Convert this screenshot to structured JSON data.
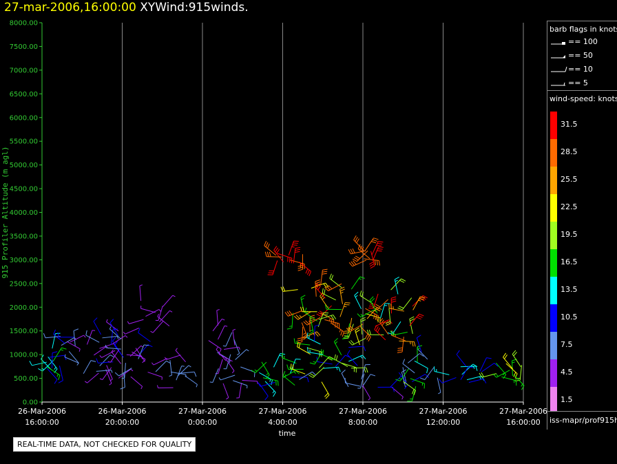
{
  "title": {
    "datetime": "27-mar-2006,16:00:00",
    "name": "XYWind:915winds."
  },
  "legend_flags": {
    "title": "barb flags in knots",
    "items": [
      {
        "symbol": "pennant",
        "label": "== 100"
      },
      {
        "symbol": "flag",
        "label": "== 50"
      },
      {
        "symbol": "full-barb",
        "label": "== 10"
      },
      {
        "symbol": "half-barb",
        "label": "== 5"
      }
    ]
  },
  "legend_speed": {
    "title": "wind-speed: knots",
    "bins": [
      {
        "label": "31.5",
        "color": "#ff0000"
      },
      {
        "label": "28.5",
        "color": "#ff6a00"
      },
      {
        "label": "25.5",
        "color": "#ffa500"
      },
      {
        "label": "22.5",
        "color": "#ffff00"
      },
      {
        "label": "19.5",
        "color": "#a0ff20"
      },
      {
        "label": "16.5",
        "color": "#00e000"
      },
      {
        "label": "13.5",
        "color": "#00ffff"
      },
      {
        "label": "10.5",
        "color": "#0000ff"
      },
      {
        "label": "7.5",
        "color": "#6495ed"
      },
      {
        "label": "4.5",
        "color": "#a020f0"
      },
      {
        "label": "1.5",
        "color": "#ee82ee"
      }
    ]
  },
  "source_label": "iss-mapr/prof915h",
  "note": "REAL-TIME DATA, NOT CHECKED FOR QUALITY",
  "chart_data": {
    "type": "scatter",
    "xlabel": "time",
    "ylabel": "915 Profiler Altitude (m agl)",
    "ylim": [
      0,
      8000
    ],
    "xlim_hours": [
      0,
      24
    ],
    "y_ticks": [
      "0.00",
      "500.00",
      "1000.00",
      "1500.00",
      "2000.00",
      "2500.00",
      "3000.00",
      "3500.00",
      "4000.00",
      "4500.00",
      "5000.00",
      "5500.00",
      "6000.00",
      "6500.00",
      "7000.00",
      "7500.00",
      "8000.00"
    ],
    "x_ticks": [
      {
        "date": "26-Mar-2006",
        "time": "16:00:00"
      },
      {
        "date": "26-Mar-2006",
        "time": "20:00:00"
      },
      {
        "date": "27-Mar-2006",
        "time": "0:00:00"
      },
      {
        "date": "27-Mar-2006",
        "time": "4:00:00"
      },
      {
        "date": "27-Mar-2006",
        "time": "8:00:00"
      },
      {
        "date": "27-Mar-2006",
        "time": "12:00:00"
      },
      {
        "date": "27-Mar-2006",
        "time": "16:00:00"
      }
    ],
    "grid": "vertical",
    "axis_color": "#33cc33",
    "clusters": [
      {
        "t": [
          0.0,
          0.6
        ],
        "alt": [
          600,
          1150
        ],
        "speed": [
          10,
          17
        ]
      },
      {
        "t": [
          0.8,
          2.2
        ],
        "alt": [
          500,
          1400
        ],
        "speed": [
          4,
          12
        ]
      },
      {
        "t": [
          2.2,
          4.2
        ],
        "alt": [
          450,
          1550
        ],
        "speed": [
          3,
          12
        ]
      },
      {
        "t": [
          3.5,
          6.0
        ],
        "alt": [
          500,
          1300
        ],
        "speed": [
          3,
          11
        ]
      },
      {
        "t": [
          4.8,
          6.5
        ],
        "alt": [
          1500,
          2150
        ],
        "speed": [
          3,
          6
        ]
      },
      {
        "t": [
          6.2,
          7.5
        ],
        "alt": [
          300,
          1000
        ],
        "speed": [
          4,
          9
        ]
      },
      {
        "t": [
          8.0,
          9.8
        ],
        "alt": [
          900,
          1650
        ],
        "speed": [
          3,
          8
        ]
      },
      {
        "t": [
          8.8,
          10.0
        ],
        "alt": [
          350,
          900
        ],
        "speed": [
          4,
          9
        ]
      },
      {
        "t": [
          10.8,
          13.0
        ],
        "alt": [
          350,
          1000
        ],
        "speed": [
          8,
          18
        ]
      },
      {
        "t": [
          11.5,
          13.0
        ],
        "alt": [
          2800,
          3150
        ],
        "speed": [
          28,
          33
        ]
      },
      {
        "t": [
          12.5,
          15.0
        ],
        "alt": [
          1200,
          2550
        ],
        "speed": [
          15,
          31
        ]
      },
      {
        "t": [
          12.8,
          15.5
        ],
        "alt": [
          300,
          1300
        ],
        "speed": [
          8,
          22
        ]
      },
      {
        "t": [
          15.0,
          18.5
        ],
        "alt": [
          1200,
          2400
        ],
        "speed": [
          14,
          32
        ]
      },
      {
        "t": [
          15.5,
          18.0
        ],
        "alt": [
          300,
          800
        ],
        "speed": [
          4,
          10
        ]
      },
      {
        "t": [
          16.0,
          16.5
        ],
        "alt": [
          2950,
          3200
        ],
        "speed": [
          27,
          31
        ]
      },
      {
        "t": [
          18.0,
          20.0
        ],
        "alt": [
          300,
          1100
        ],
        "speed": [
          6,
          20
        ]
      },
      {
        "t": [
          19.5,
          22.0
        ],
        "alt": [
          400,
          800
        ],
        "speed": [
          8,
          15
        ]
      },
      {
        "t": [
          22.5,
          24.0
        ],
        "alt": [
          450,
          850
        ],
        "speed": [
          15,
          23
        ]
      }
    ]
  }
}
